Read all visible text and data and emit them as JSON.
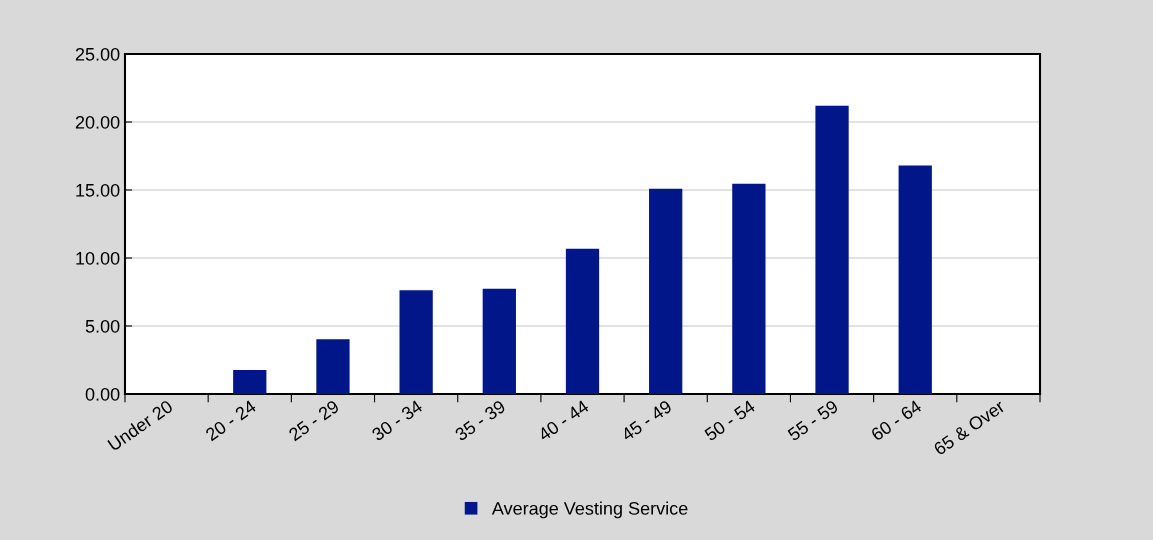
{
  "chart_data": {
    "type": "bar",
    "categories": [
      "Under 20",
      "20 - 24",
      "25 - 29",
      "30 - 34",
      "35 - 39",
      "40 - 44",
      "45 - 49",
      "50 - 54",
      "55 - 59",
      "60 - 64",
      "65 & Over"
    ],
    "series": [
      {
        "name": "Average Vesting Service",
        "color": "#001689",
        "values": [
          null,
          1.76,
          4.02,
          7.62,
          7.74,
          10.68,
          15.1,
          15.46,
          21.2,
          16.81,
          null
        ]
      }
    ],
    "ylim": [
      0,
      25
    ],
    "yticks": [
      {
        "value": 0,
        "label": "0.00"
      },
      {
        "value": 5,
        "label": "5.00"
      },
      {
        "value": 10,
        "label": "10.00"
      },
      {
        "value": 15,
        "label": "15.00"
      },
      {
        "value": 20,
        "label": "20.00"
      },
      {
        "value": 25,
        "label": "25.00"
      }
    ],
    "grid": "y",
    "legend": "bottom"
  }
}
